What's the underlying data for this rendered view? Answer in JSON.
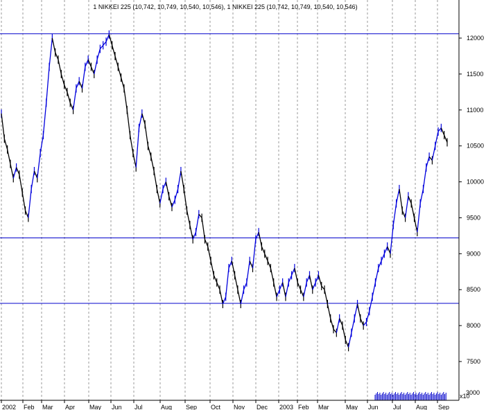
{
  "chart_data": {
    "type": "line",
    "title": "1 NIKKEI 225 (10,742, 10,749, 10,540, 10,546), 1 NIKKEI 225 (10,742, 10,749, 10,540, 10,546)",
    "x_tick_labels": [
      "2002",
      "Feb",
      "Mar",
      "Apr",
      "May",
      "Jun",
      "Jul",
      "Aug",
      "Sep",
      "Oct",
      "Nov",
      "Dec",
      "2003",
      "Feb",
      "Mar",
      "May",
      "Jun",
      "Jul",
      "Aug",
      "Sep"
    ],
    "y_tick_labels": [
      "7500",
      "8000",
      "8500",
      "9000",
      "9500",
      "10000",
      "10500",
      "11000",
      "11500",
      "12000"
    ],
    "volume_label": "3000",
    "volume_unit_label": "x10",
    "ylim": [
      7100,
      12400
    ],
    "grid": "vertical dashed",
    "horizontal_lines": [
      12060,
      9220,
      8310
    ],
    "series": [
      {
        "values": [
          10950,
          10600,
          10450,
          10250,
          10050,
          10200,
          10100,
          9850,
          9600,
          9500,
          9900,
          10150,
          10050,
          10400,
          10650,
          11100,
          11600,
          12000,
          11800,
          11700,
          11500,
          11350,
          11250,
          11100,
          11000,
          11300,
          11400,
          11300,
          11600,
          11700,
          11600,
          11500,
          11700,
          11850,
          11900,
          11950,
          12050,
          11900,
          11750,
          11600,
          11450,
          11300,
          11000,
          10650,
          10400,
          10200,
          10750,
          10950,
          10800,
          10500,
          10350,
          10150,
          9900,
          9700,
          9900,
          10000,
          9800,
          9650,
          9750,
          9900,
          10150,
          9900,
          9600,
          9400,
          9200,
          9300,
          9550,
          9500,
          9200,
          9100,
          8900,
          8700,
          8600,
          8500,
          8300,
          8400,
          8800,
          8900,
          8700,
          8500,
          8300,
          8500,
          8600,
          8900,
          8800,
          9200,
          9300,
          9100,
          9000,
          8900,
          8800,
          8600,
          8400,
          8500,
          8600,
          8400,
          8600,
          8700,
          8800,
          8600,
          8500,
          8400,
          8600,
          8700,
          8500,
          8600,
          8700,
          8550,
          8500,
          8300,
          8100,
          7950,
          7900,
          8100,
          8000,
          7800,
          7700,
          7900,
          8100,
          8300,
          8100,
          8000,
          8050,
          8200,
          8400,
          8600,
          8800,
          8900,
          9000,
          9100,
          9000,
          9400,
          9700,
          9900,
          9600,
          9500,
          9800,
          9700,
          9500,
          9300,
          9700,
          9900,
          10200,
          10350,
          10300,
          10500,
          10700,
          10750,
          10650,
          10550
        ]
      }
    ],
    "volume_bars": 60
  }
}
